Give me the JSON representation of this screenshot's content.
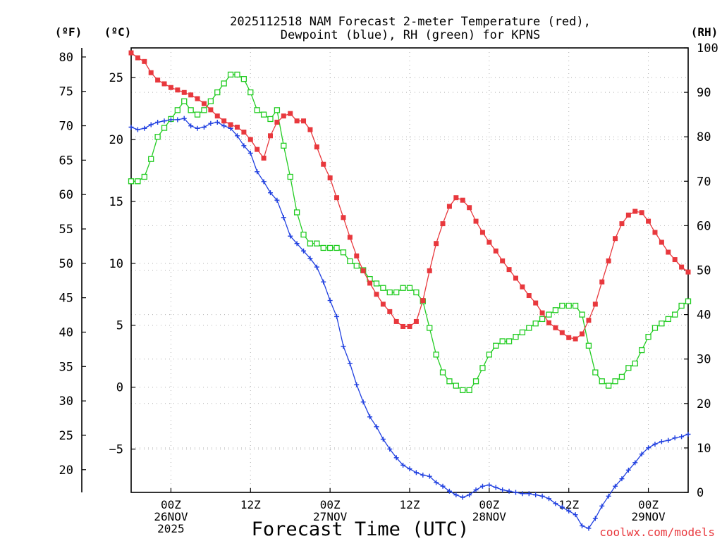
{
  "title_line1": "2025112518 NAM Forecast 2-meter Temperature (red),",
  "title_line2": "Dewpoint (blue), RH (green) for KPNS",
  "units": {
    "fahrenheit": "(ºF)",
    "celsius": "(ºC)",
    "rh": "(RH)"
  },
  "xlabel": "Forecast Time (UTC)",
  "credit": "coolwx.com/models",
  "colors": {
    "temperature": "#e8383d",
    "dewpoint": "#1f3fe0",
    "rh": "#22cc22",
    "grid": "#b0b0b0"
  },
  "chart_data": {
    "type": "line",
    "title": "2025112518 NAM Forecast 2-meter Temperature (red), Dewpoint (blue), RH (green) for KPNS",
    "xlabel": "Forecast Time (UTC)",
    "x_unit": "forecast hour from 2025-11-25 18Z",
    "x_range": [
      0,
      84
    ],
    "celsius_axis": {
      "range": [
        -8.5,
        27.4
      ],
      "ticks": [
        "25",
        "20",
        "15",
        "10",
        "5",
        "0",
        "-5"
      ],
      "tick_values": [
        25,
        20,
        15,
        10,
        5,
        0,
        -5
      ]
    },
    "fahrenheit_axis": {
      "ticks": [
        "80",
        "75",
        "70",
        "65",
        "60",
        "55",
        "50",
        "45",
        "40",
        "35",
        "30",
        "25",
        "20"
      ],
      "tick_values": [
        80,
        75,
        70,
        65,
        60,
        55,
        50,
        45,
        40,
        35,
        30,
        25,
        20
      ]
    },
    "rh_axis": {
      "range": [
        0,
        100
      ],
      "ticks": [
        "100",
        "90",
        "80",
        "70",
        "60",
        "50",
        "40",
        "30",
        "20",
        "10",
        "0"
      ],
      "tick_values": [
        100,
        90,
        80,
        70,
        60,
        50,
        40,
        30,
        20,
        10,
        0
      ]
    },
    "x_ticks": [
      {
        "hour": 6,
        "lines": [
          "00Z",
          "26NOV",
          "2025"
        ]
      },
      {
        "hour": 18,
        "lines": [
          "12Z"
        ]
      },
      {
        "hour": 30,
        "lines": [
          "00Z",
          "27NOV"
        ]
      },
      {
        "hour": 42,
        "lines": [
          "12Z"
        ]
      },
      {
        "hour": 54,
        "lines": [
          "00Z",
          "28NOV"
        ]
      },
      {
        "hour": 66,
        "lines": [
          "12Z"
        ]
      },
      {
        "hour": 78,
        "lines": [
          "00Z",
          "29NOV"
        ]
      }
    ],
    "series": [
      {
        "name": "2-meter Temperature",
        "unit": "°C",
        "color": "#e8383d",
        "marker": "filled-square",
        "x": [
          0,
          1,
          2,
          3,
          4,
          5,
          6,
          7,
          8,
          9,
          10,
          11,
          12,
          13,
          14,
          15,
          16,
          17,
          18,
          19,
          20,
          21,
          22,
          23,
          24,
          25,
          26,
          27,
          28,
          29,
          30,
          31,
          32,
          33,
          34,
          35,
          36,
          37,
          38,
          39,
          40,
          41,
          42,
          43,
          44,
          45,
          46,
          47,
          48,
          49,
          50,
          51,
          52,
          53,
          54,
          55,
          56,
          57,
          58,
          59,
          60,
          61,
          62,
          63,
          64,
          65,
          66,
          67,
          68,
          69,
          70,
          71,
          72,
          73,
          74,
          75,
          76,
          77,
          78,
          79,
          80,
          81,
          82,
          83,
          84
        ],
        "values": [
          27.0,
          26.6,
          26.3,
          25.4,
          24.8,
          24.5,
          24.2,
          24.0,
          23.8,
          23.6,
          23.3,
          22.9,
          22.4,
          21.9,
          21.5,
          21.2,
          21.0,
          20.6,
          20.0,
          19.2,
          18.5,
          20.3,
          21.4,
          21.9,
          22.1,
          21.5,
          21.5,
          20.8,
          19.4,
          18.0,
          16.9,
          15.3,
          13.7,
          12.1,
          10.6,
          9.4,
          8.4,
          7.5,
          6.7,
          6.1,
          5.3,
          4.9,
          4.9,
          5.3,
          7.0,
          9.4,
          11.6,
          13.2,
          14.6,
          15.3,
          15.1,
          14.5,
          13.4,
          12.5,
          11.7,
          11.0,
          10.2,
          9.5,
          8.8,
          8.1,
          7.4,
          6.8,
          6.0,
          5.2,
          4.8,
          4.4,
          4.0,
          3.9,
          4.3,
          5.4,
          6.7,
          8.5,
          10.2,
          12.0,
          13.2,
          13.9,
          14.2,
          14.1,
          13.4,
          12.5,
          11.7,
          10.9,
          10.3,
          9.7,
          9.3
        ]
      },
      {
        "name": "Dewpoint",
        "unit": "°C",
        "color": "#1f3fe0",
        "marker": "plus",
        "x": [
          0,
          1,
          2,
          3,
          4,
          5,
          6,
          7,
          8,
          9,
          10,
          11,
          12,
          13,
          14,
          15,
          16,
          17,
          18,
          19,
          20,
          21,
          22,
          23,
          24,
          25,
          26,
          27,
          28,
          29,
          30,
          31,
          32,
          33,
          34,
          35,
          36,
          37,
          38,
          39,
          40,
          41,
          42,
          43,
          44,
          45,
          46,
          47,
          48,
          49,
          50,
          51,
          52,
          53,
          54,
          55,
          56,
          57,
          58,
          59,
          60,
          61,
          62,
          63,
          64,
          65,
          66,
          67,
          68,
          69,
          70,
          71,
          72,
          73,
          74,
          75,
          76,
          77,
          78,
          79,
          80,
          81,
          82,
          83,
          84
        ],
        "values": [
          21.0,
          20.8,
          20.9,
          21.2,
          21.4,
          21.5,
          21.6,
          21.6,
          21.7,
          21.1,
          20.9,
          21.0,
          21.3,
          21.4,
          21.1,
          20.9,
          20.3,
          19.5,
          18.9,
          17.4,
          16.6,
          15.7,
          15.1,
          13.7,
          12.2,
          11.6,
          11.0,
          10.4,
          9.7,
          8.5,
          7.0,
          5.7,
          3.3,
          1.9,
          0.2,
          -1.2,
          -2.4,
          -3.2,
          -4.2,
          -5.0,
          -5.7,
          -6.3,
          -6.6,
          -6.9,
          -7.1,
          -7.2,
          -7.7,
          -8.0,
          -8.4,
          -8.7,
          -8.9,
          -8.7,
          -8.3,
          -8.0,
          -7.9,
          -8.1,
          -8.3,
          -8.4,
          -8.5,
          -8.6,
          -8.6,
          -8.7,
          -8.8,
          -9.0,
          -9.4,
          -9.7,
          -10.0,
          -10.3,
          -11.2,
          -11.4,
          -10.6,
          -9.6,
          -8.8,
          -8.0,
          -7.4,
          -6.7,
          -6.1,
          -5.4,
          -4.9,
          -4.6,
          -4.4,
          -4.3,
          -4.1,
          -4.0,
          -3.8
        ]
      },
      {
        "name": "Relative Humidity",
        "unit": "%",
        "color": "#22cc22",
        "marker": "open-square",
        "x": [
          0,
          1,
          2,
          3,
          4,
          5,
          6,
          7,
          8,
          9,
          10,
          11,
          12,
          13,
          14,
          15,
          16,
          17,
          18,
          19,
          20,
          21,
          22,
          23,
          24,
          25,
          26,
          27,
          28,
          29,
          30,
          31,
          32,
          33,
          34,
          35,
          36,
          37,
          38,
          39,
          40,
          41,
          42,
          43,
          44,
          45,
          46,
          47,
          48,
          49,
          50,
          51,
          52,
          53,
          54,
          55,
          56,
          57,
          58,
          59,
          60,
          61,
          62,
          63,
          64,
          65,
          66,
          67,
          68,
          69,
          70,
          71,
          72,
          73,
          74,
          75,
          76,
          77,
          78,
          79,
          80,
          81,
          82,
          83,
          84
        ],
        "values": [
          70,
          70,
          71,
          75,
          80,
          82,
          84,
          86,
          88,
          86,
          85,
          86,
          88,
          90,
          92,
          94,
          94,
          93,
          90,
          86,
          85,
          84,
          86,
          78,
          71,
          63,
          58,
          56,
          56,
          55,
          55,
          55,
          54,
          52,
          51,
          50,
          48,
          47,
          46,
          45,
          45,
          46,
          46,
          45,
          43,
          37,
          31,
          27,
          25,
          24,
          23,
          23,
          25,
          28,
          31,
          33,
          34,
          34,
          35,
          36,
          37,
          38,
          39,
          40,
          41,
          42,
          42,
          42,
          40,
          33,
          27,
          25,
          24,
          25,
          26,
          28,
          29,
          32,
          35,
          37,
          38,
          39,
          40,
          42,
          43
        ]
      }
    ]
  }
}
